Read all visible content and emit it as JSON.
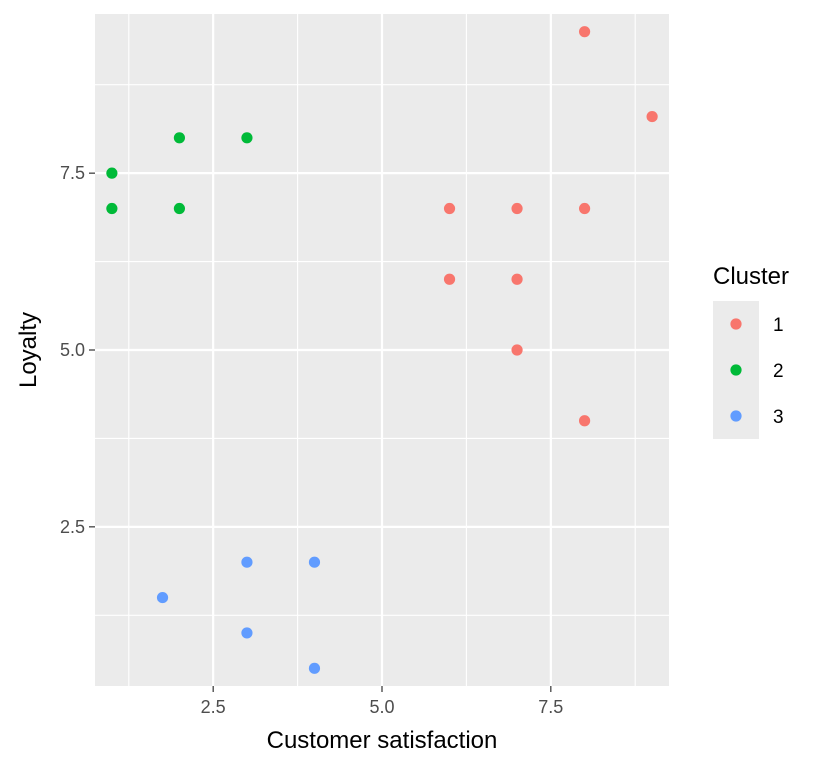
{
  "chart_data": {
    "type": "scatter",
    "title": "",
    "xlabel": "Customer satisfaction",
    "ylabel": "Loyalty",
    "xlim": [
      0.75,
      9.25
    ],
    "ylim": [
      0.25,
      9.75
    ],
    "x_ticks": [
      2.5,
      5.0,
      7.5
    ],
    "x_tick_labels": [
      "2.5",
      "5.0",
      "7.5"
    ],
    "y_ticks": [
      2.5,
      5.0,
      7.5
    ],
    "y_tick_labels": [
      "2.5",
      "5.0",
      "7.5"
    ],
    "grid": true,
    "legend": {
      "title": "Cluster",
      "position": "right"
    },
    "series": [
      {
        "name": "1",
        "color": "#F8766D",
        "points": [
          [
            8,
            9.5
          ],
          [
            9,
            8.3
          ],
          [
            6,
            7
          ],
          [
            7,
            7
          ],
          [
            8,
            7
          ],
          [
            6,
            6
          ],
          [
            7,
            6
          ],
          [
            7,
            5
          ],
          [
            8,
            4
          ]
        ]
      },
      {
        "name": "2",
        "color": "#00BA38",
        "points": [
          [
            2,
            8
          ],
          [
            3,
            8
          ],
          [
            1,
            7.5
          ],
          [
            1,
            7
          ],
          [
            2,
            7
          ]
        ]
      },
      {
        "name": "3",
        "color": "#619CFF",
        "points": [
          [
            3,
            2
          ],
          [
            4,
            2
          ],
          [
            1.75,
            1.5
          ],
          [
            3,
            1
          ],
          [
            4,
            0.5
          ]
        ]
      }
    ]
  }
}
